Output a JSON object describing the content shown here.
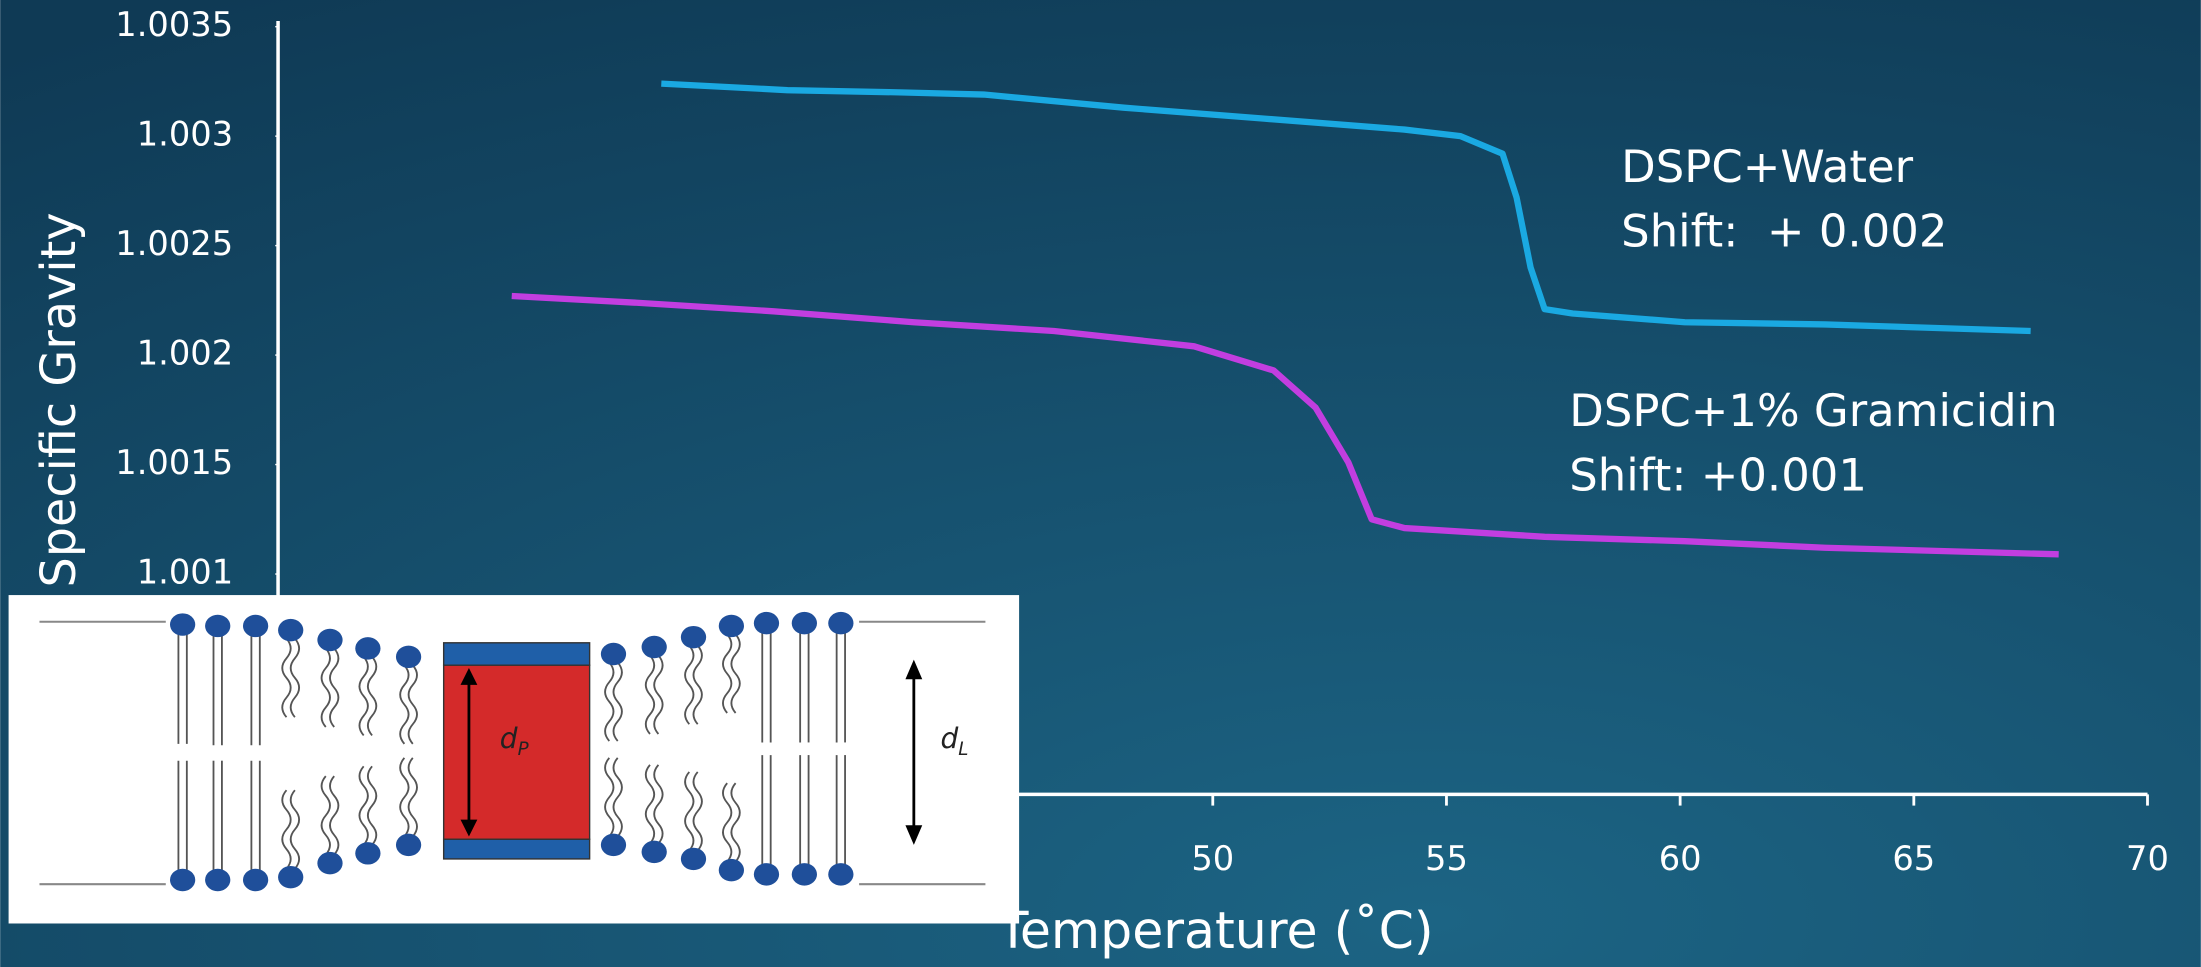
{
  "chart_data": {
    "type": "line",
    "x_label": "Temperature (˚C)",
    "y_label": "Specific Gravity",
    "xlim": [
      30,
      70
    ],
    "xticks": [
      50,
      55,
      60,
      65,
      70
    ],
    "ylim": [
      1.0,
      1.0035
    ],
    "yticks": [
      1.0035,
      1.003,
      1.0025,
      1.002,
      1.0015,
      1.001
    ],
    "series": [
      {
        "name": "DSPC+Water",
        "color": "#1aa9e2",
        "x": [
          38.2,
          40.9,
          43.3,
          45.1,
          48.1,
          51.1,
          54.1,
          55.3,
          56.2,
          56.5,
          56.8,
          57.1,
          57.7,
          60.1,
          63.1,
          67.5
        ],
        "values": [
          1.00324,
          1.00321,
          1.0032,
          1.00319,
          1.00313,
          1.00308,
          1.00303,
          1.003,
          1.00292,
          1.00272,
          1.0024,
          1.00221,
          1.00219,
          1.00215,
          1.00214,
          1.00211
        ]
      },
      {
        "name": "DSPC+1% Gramicidin",
        "color": "#c23ee0",
        "x": [
          35.0,
          37.6,
          40.6,
          43.6,
          46.6,
          49.6,
          51.3,
          52.2,
          52.9,
          53.4,
          54.1,
          57.1,
          60.1,
          63.1,
          68.1
        ],
        "values": [
          1.00227,
          1.00224,
          1.0022,
          1.00215,
          1.00211,
          1.00204,
          1.00193,
          1.00176,
          1.00151,
          1.00125,
          1.00121,
          1.00117,
          1.00115,
          1.00112,
          1.00109
        ]
      }
    ],
    "annotations": [
      "Shift:  + 0.002",
      "Shift: +0.001"
    ]
  },
  "inset": {
    "labels": [
      {
        "main": "d",
        "sub": "P"
      },
      {
        "main": "d",
        "sub": "L"
      }
    ]
  }
}
